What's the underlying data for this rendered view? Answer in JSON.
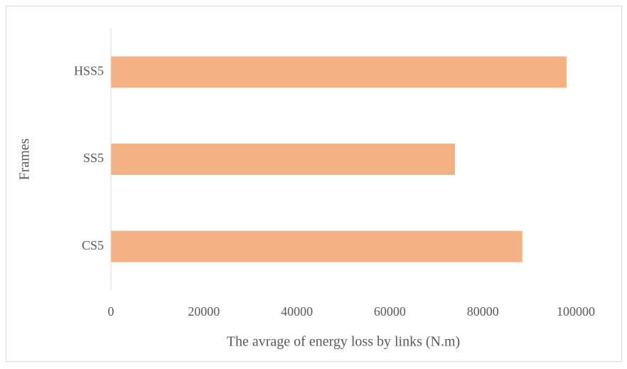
{
  "chart_data": {
    "type": "barh",
    "categories": [
      "CS5",
      "SS5",
      "HSS5"
    ],
    "values": [
      88500,
      74000,
      98000
    ],
    "color": "#f4b183",
    "xlabel": "The avrage of energy loss by links (N.m)",
    "ylabel": "Frames",
    "xlim": [
      0,
      100000
    ],
    "xticks": [
      0,
      20000,
      40000,
      60000,
      80000,
      100000
    ],
    "grid": false
  }
}
